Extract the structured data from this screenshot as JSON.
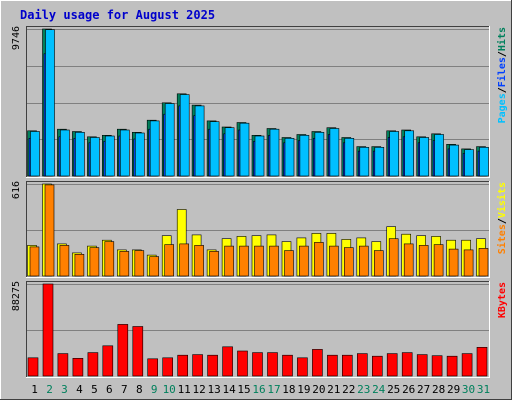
{
  "title": "Daily usage for August 2025",
  "colors": {
    "background": "#c0c0c0",
    "plot_background": "#c0c0c0",
    "title": "#0000cc",
    "hits": "#00805c",
    "files": "#0040ff",
    "pages": "#00c0ff",
    "visits": "#ffff00",
    "sites": "#ff8000",
    "kbytes": "#ff0000",
    "weekend_day": "#00805c",
    "weekday": "#000000",
    "gridline": "#808080"
  },
  "chart_data": [
    {
      "type": "bar",
      "panel": "hits-files-pages",
      "ymax_label": "9746",
      "ylim": [
        0,
        9746
      ],
      "grid": true,
      "legend": [
        {
          "label": "Pages",
          "color_key": "pages"
        },
        {
          "label": "/",
          "color_key": "weekday"
        },
        {
          "label": "Files",
          "color_key": "files"
        },
        {
          "label": "/",
          "color_key": "weekday"
        },
        {
          "label": "Hits",
          "color_key": "hits"
        }
      ],
      "categories": [
        "1",
        "2",
        "3",
        "4",
        "5",
        "6",
        "7",
        "8",
        "9",
        "10",
        "11",
        "12",
        "13",
        "14",
        "15",
        "16",
        "17",
        "18",
        "19",
        "20",
        "21",
        "22",
        "23",
        "24",
        "25",
        "26",
        "27",
        "28",
        "29",
        "30",
        "31"
      ],
      "series": [
        {
          "name": "Hits",
          "values": [
            3000,
            9746,
            3100,
            2950,
            2600,
            2700,
            3100,
            2900,
            3700,
            4850,
            5450,
            4700,
            3650,
            3250,
            3550,
            2700,
            3150,
            2550,
            2750,
            2950,
            3200,
            2550,
            1950,
            1950,
            3000,
            3050,
            2600,
            2800,
            2100,
            1800,
            1950
          ]
        },
        {
          "name": "Files",
          "values": [
            2500,
            8100,
            2600,
            2500,
            2200,
            2300,
            2650,
            2450,
            3100,
            4100,
            4650,
            4000,
            3100,
            2800,
            3050,
            2300,
            2700,
            2200,
            2350,
            2500,
            2750,
            2200,
            1650,
            1650,
            2550,
            2600,
            2200,
            2350,
            1800,
            1500,
            1650
          ]
        },
        {
          "name": "Pages",
          "values": [
            2950,
            9700,
            3050,
            2900,
            2550,
            2650,
            3050,
            2850,
            3650,
            4800,
            5400,
            4650,
            3600,
            3200,
            3500,
            2650,
            3100,
            2500,
            2700,
            2900,
            3150,
            2500,
            1900,
            1900,
            2950,
            3000,
            2550,
            2750,
            2050,
            1750,
            1900
          ]
        }
      ]
    },
    {
      "type": "bar",
      "panel": "visits-sites",
      "ymax_label": "616",
      "ylim": [
        0,
        616
      ],
      "grid": true,
      "legend": [
        {
          "label": "Sites",
          "color_key": "sites"
        },
        {
          "label": "/",
          "color_key": "weekday"
        },
        {
          "label": "Visits",
          "color_key": "visits"
        }
      ],
      "categories": [
        "1",
        "2",
        "3",
        "4",
        "5",
        "6",
        "7",
        "8",
        "9",
        "10",
        "11",
        "12",
        "13",
        "14",
        "15",
        "16",
        "17",
        "18",
        "19",
        "20",
        "21",
        "22",
        "23",
        "24",
        "25",
        "26",
        "27",
        "28",
        "29",
        "30",
        "31"
      ],
      "series": [
        {
          "name": "Visits",
          "values": [
            205,
            616,
            215,
            155,
            200,
            240,
            175,
            175,
            140,
            270,
            445,
            275,
            175,
            250,
            265,
            270,
            275,
            230,
            255,
            285,
            285,
            245,
            255,
            230,
            330,
            280,
            270,
            265,
            240,
            240,
            250
          ]
        },
        {
          "name": "Sites",
          "values": [
            195,
            610,
            205,
            145,
            190,
            230,
            165,
            170,
            130,
            210,
            215,
            205,
            165,
            200,
            200,
            200,
            200,
            170,
            200,
            225,
            200,
            190,
            200,
            170,
            250,
            215,
            205,
            210,
            180,
            175,
            185
          ]
        }
      ]
    },
    {
      "type": "bar",
      "panel": "kbytes",
      "ymax_label": "88275",
      "ylim": [
        0,
        88275
      ],
      "grid": true,
      "legend": [
        {
          "label": "KBytes",
          "color_key": "kbytes"
        }
      ],
      "categories": [
        "1",
        "2",
        "3",
        "4",
        "5",
        "6",
        "7",
        "8",
        "9",
        "10",
        "11",
        "12",
        "13",
        "14",
        "15",
        "16",
        "17",
        "18",
        "19",
        "20",
        "21",
        "22",
        "23",
        "24",
        "25",
        "26",
        "27",
        "28",
        "29",
        "30",
        "31"
      ],
      "series": [
        {
          "name": "KBytes",
          "values": [
            17500,
            88275,
            21500,
            17000,
            22500,
            29000,
            49500,
            47500,
            16500,
            17500,
            20000,
            20500,
            20000,
            28000,
            24000,
            22500,
            22500,
            20000,
            17500,
            25500,
            20000,
            20000,
            21500,
            19000,
            21500,
            22500,
            20500,
            19500,
            19000,
            21500,
            27500
          ]
        }
      ]
    }
  ],
  "x_axis": {
    "labels": [
      "1",
      "2",
      "3",
      "4",
      "5",
      "6",
      "7",
      "8",
      "9",
      "10",
      "11",
      "12",
      "13",
      "14",
      "15",
      "16",
      "17",
      "18",
      "19",
      "20",
      "21",
      "22",
      "23",
      "24",
      "25",
      "26",
      "27",
      "28",
      "29",
      "30",
      "31"
    ],
    "weekend_days": [
      "2",
      "3",
      "9",
      "10",
      "16",
      "17",
      "23",
      "24",
      "30",
      "31"
    ]
  }
}
